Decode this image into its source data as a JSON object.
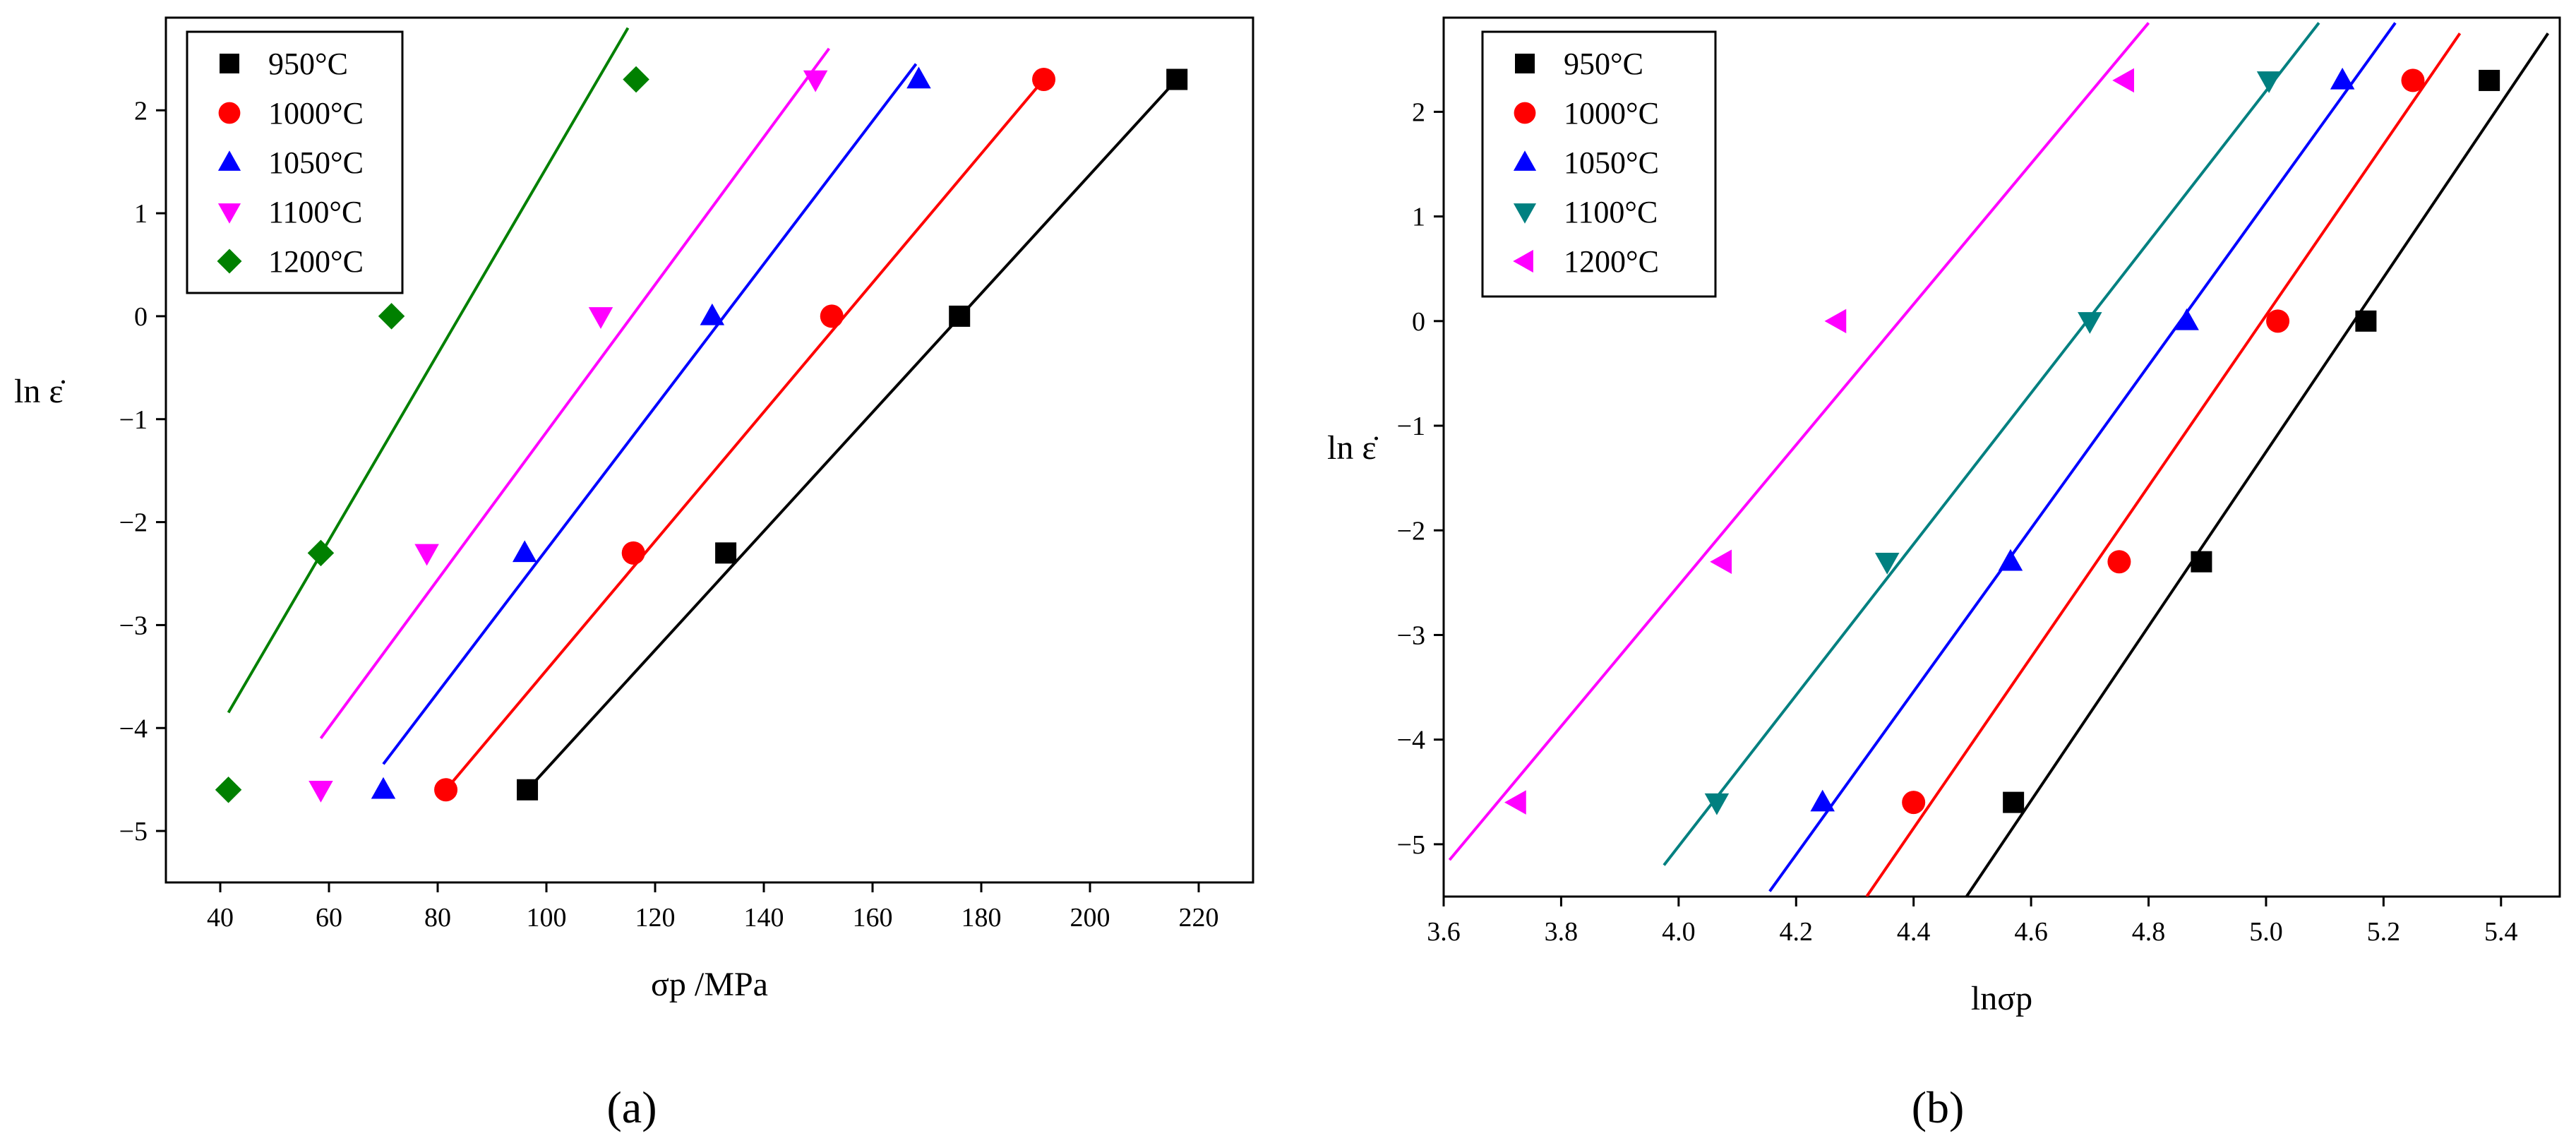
{
  "figure": {
    "caption_a": "(a)",
    "caption_b": "(b)"
  },
  "chart_data": [
    {
      "panel": "a",
      "type": "scatter",
      "xlabel": "σp /MPa",
      "ylabel": "ln ε̇",
      "xlim": [
        30,
        230
      ],
      "ylim": [
        -5.5,
        2.9
      ],
      "xticks": [
        40,
        60,
        80,
        100,
        120,
        140,
        160,
        180,
        200,
        220
      ],
      "yticks": [
        -5,
        -4,
        -3,
        -2,
        -1,
        0,
        1,
        2
      ],
      "legend_position": "top-left",
      "series": [
        {
          "name": "950°C",
          "color": "#000000",
          "marker": "square",
          "points": [
            [
              96.5,
              -4.6
            ],
            [
              133,
              -2.3
            ],
            [
              176,
              0
            ],
            [
              216,
              2.3
            ]
          ],
          "fit": [
            [
              96.5,
              -4.6
            ],
            [
              216,
              2.3
            ]
          ]
        },
        {
          "name": "1000°C",
          "color": "#ff0000",
          "marker": "circle",
          "points": [
            [
              81.5,
              -4.6
            ],
            [
              116,
              -2.3
            ],
            [
              152.5,
              0
            ],
            [
              191.5,
              2.3
            ]
          ],
          "fit": [
            [
              81.5,
              -4.6
            ],
            [
              191.5,
              2.3
            ]
          ]
        },
        {
          "name": "1050°C",
          "color": "#0000ff",
          "marker": "triangle-up",
          "points": [
            [
              70,
              -4.6
            ],
            [
              96,
              -2.3
            ],
            [
              130.5,
              0
            ],
            [
              168.5,
              2.3
            ]
          ],
          "fit": [
            [
              70,
              -4.35
            ],
            [
              168,
              2.45
            ]
          ]
        },
        {
          "name": "1100°C",
          "color": "#ff00ff",
          "marker": "triangle-down",
          "points": [
            [
              58.5,
              -4.6
            ],
            [
              78,
              -2.3
            ],
            [
              110,
              0
            ],
            [
              149.5,
              2.3
            ]
          ],
          "fit": [
            [
              58.5,
              -4.1
            ],
            [
              152,
              2.6
            ]
          ]
        },
        {
          "name": "1200°C",
          "color": "#008000",
          "marker": "diamond",
          "points": [
            [
              41.5,
              -4.6
            ],
            [
              58.5,
              -2.3
            ],
            [
              71.5,
              0
            ],
            [
              116.5,
              2.3
            ]
          ],
          "fit": [
            [
              41.5,
              -3.85
            ],
            [
              115,
              2.8
            ]
          ]
        }
      ]
    },
    {
      "panel": "b",
      "type": "scatter",
      "xlabel": "lnσp",
      "ylabel": "ln ε̇",
      "xlim": [
        3.6,
        5.5
      ],
      "ylim": [
        -5.5,
        2.9
      ],
      "xticks": [
        3.6,
        3.8,
        4.0,
        4.2,
        4.4,
        4.6,
        4.8,
        5.0,
        5.2,
        5.4
      ],
      "yticks": [
        -5,
        -4,
        -3,
        -2,
        -1,
        0,
        1,
        2
      ],
      "legend_position": "top-left",
      "series": [
        {
          "name": "950°C",
          "color": "#000000",
          "marker": "square",
          "points": [
            [
              4.57,
              -4.6
            ],
            [
              4.89,
              -2.3
            ],
            [
              5.17,
              0
            ],
            [
              5.38,
              2.3
            ]
          ],
          "fit": [
            [
              4.49,
              -5.5
            ],
            [
              5.48,
              2.75
            ]
          ]
        },
        {
          "name": "1000°C",
          "color": "#ff0000",
          "marker": "circle",
          "points": [
            [
              4.4,
              -4.6
            ],
            [
              4.75,
              -2.3
            ],
            [
              5.02,
              0
            ],
            [
              5.25,
              2.3
            ]
          ],
          "fit": [
            [
              4.32,
              -5.5
            ],
            [
              5.33,
              2.75
            ]
          ]
        },
        {
          "name": "1050°C",
          "color": "#0000ff",
          "marker": "triangle-up",
          "points": [
            [
              4.245,
              -4.6
            ],
            [
              4.565,
              -2.3
            ],
            [
              4.865,
              0
            ],
            [
              5.13,
              2.3
            ]
          ],
          "fit": [
            [
              4.155,
              -5.45
            ],
            [
              5.22,
              2.85
            ]
          ]
        },
        {
          "name": "1100°C",
          "color": "#008080",
          "marker": "triangle-down",
          "points": [
            [
              4.065,
              -4.6
            ],
            [
              4.355,
              -2.3
            ],
            [
              4.7,
              0
            ],
            [
              5.005,
              2.3
            ]
          ],
          "fit": [
            [
              3.975,
              -5.2
            ],
            [
              5.09,
              2.85
            ]
          ]
        },
        {
          "name": "1200°C",
          "color": "#ff00ff",
          "marker": "triangle-left",
          "points": [
            [
              3.725,
              -4.6
            ],
            [
              4.075,
              -2.3
            ],
            [
              4.27,
              0
            ],
            [
              4.76,
              2.3
            ]
          ],
          "fit": [
            [
              3.61,
              -5.15
            ],
            [
              4.8,
              2.85
            ]
          ]
        }
      ]
    }
  ]
}
